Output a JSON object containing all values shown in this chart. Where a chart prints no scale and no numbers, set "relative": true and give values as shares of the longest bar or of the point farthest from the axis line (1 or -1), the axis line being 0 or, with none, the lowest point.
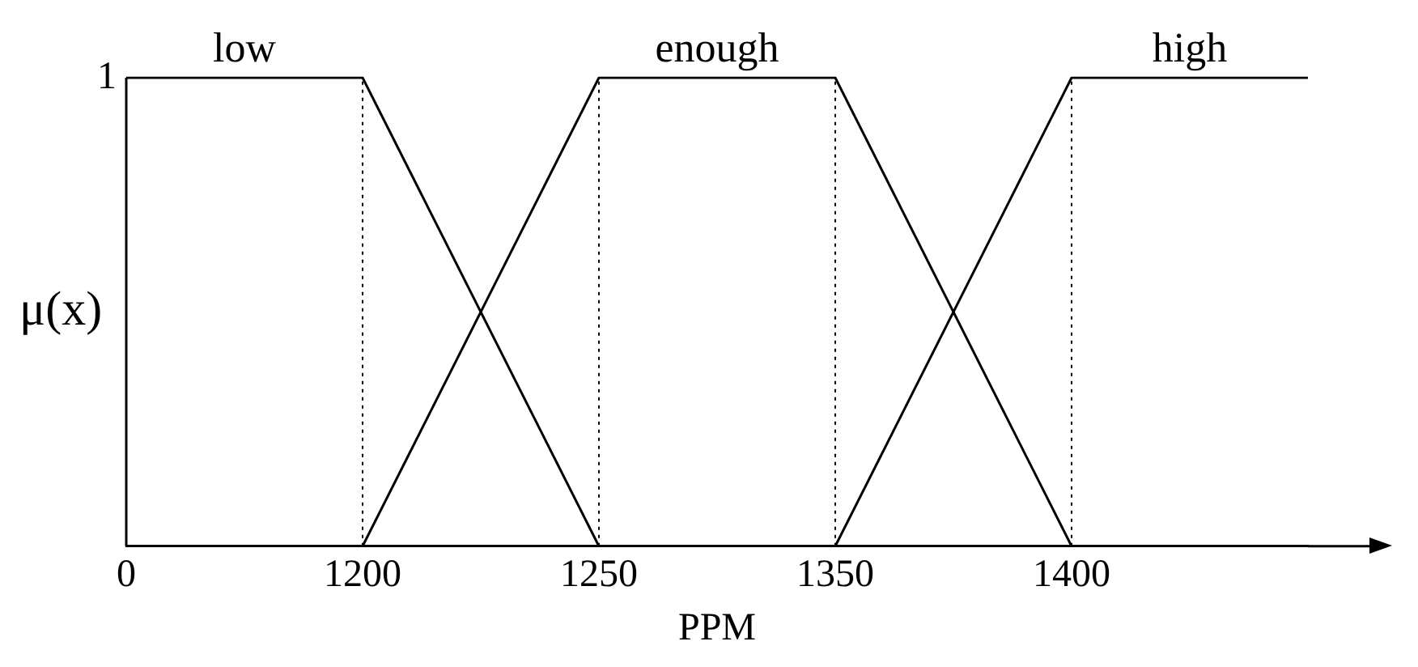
{
  "chart_data": {
    "type": "line",
    "xlabel": "PPM",
    "ylabel": "μ(x)",
    "categories": [
      "0",
      "1200",
      "1250",
      "1350",
      "1400",
      null
    ],
    "series": [
      {
        "name": "low",
        "color": "#000000",
        "values": [
          1,
          1,
          0,
          null,
          null,
          null
        ]
      },
      {
        "name": "enough",
        "color": "#000000",
        "values": [
          null,
          0,
          1,
          1,
          0,
          null
        ]
      },
      {
        "name": "high",
        "color": "#000000",
        "values": [
          null,
          null,
          null,
          0,
          1,
          1
        ]
      }
    ],
    "relative": true,
    "annotations": [
      "1"
    ],
    "ref_lines": [
      {
        "axis": "x",
        "value": "1200",
        "line_style": "dotted"
      },
      {
        "axis": "x",
        "value": "1250",
        "line_style": "dotted"
      },
      {
        "axis": "x",
        "value": "1350",
        "line_style": "dotted"
      },
      {
        "axis": "x",
        "value": "1400",
        "line_style": "dotted"
      }
    ],
    "grid": false,
    "legend": false,
    "marker": "none",
    "line_style": "solid"
  }
}
